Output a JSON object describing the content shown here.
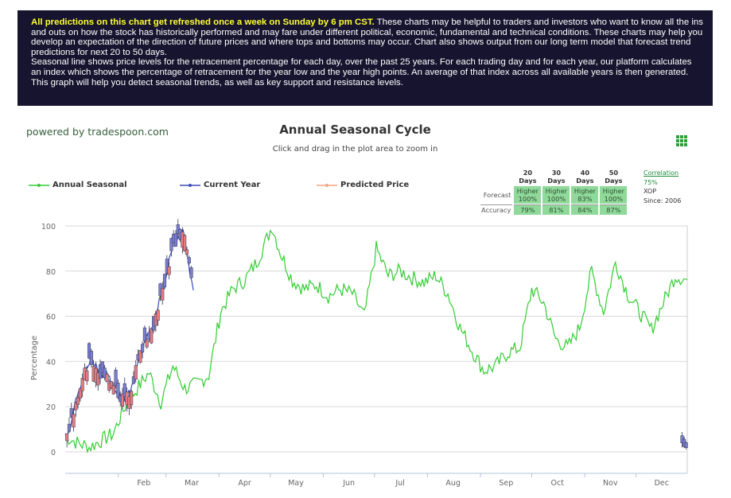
{
  "banner": {
    "headline": "All predictions on this chart get refreshed once a week on Sunday by 6 pm CST.",
    "paragraph1_rest": " These charts may be helpful to traders and investors who want to know all the ins and outs on how the stock has historically performed and may fare under different political, economic, fundamental and technical conditions. These charts may help you develop an expectation of the direction of future prices and where tops and bottoms may occur. Chart also shows output from our long term model that forecast trend predictions for next 20 to 50 days.",
    "paragraph2": "Seasonal line shows price levels for the retracement percentage for each day, over the past 25 years. For each trading day and for each year, our platform calculates an index which shows the percentage of retracement for the year low and the year high points. An average of that index across all available years is then generated. This graph will help you detect seasonal trends, as well as key support and resistance levels."
  },
  "powered_by": "powered by tradespoon.com",
  "stats": {
    "headers": [
      "20 Days",
      "30 Days",
      "40 Days",
      "50 Days"
    ],
    "forecast_label": "Forecast",
    "forecast_direction": [
      "Higher",
      "Higher",
      "Higher",
      "Higher"
    ],
    "forecast_pct": [
      "100%",
      "100%",
      "83%",
      "100%"
    ],
    "accuracy_label": "Accuracy",
    "accuracy": [
      "79%",
      "81%",
      "84%",
      "87%"
    ]
  },
  "correlation": {
    "label": "Correlation",
    "value": "75%",
    "ticker": "XOP",
    "since": "Since: 2006"
  },
  "colors": {
    "banner_bg": "#16142e",
    "banner_highlight": "#ffff33",
    "seasonal": "#33cc33",
    "current": "#3d4eb8",
    "predicted": "#f4a582",
    "candle_up": "#7a7fd0",
    "candle_down": "#e87c7c",
    "grid": "#d9d9d9"
  },
  "chart_data": {
    "type": "line",
    "title": "Annual Seasonal Cycle",
    "subtitle": "Click and drag in the plot area to zoom in",
    "ylabel": "Percentage",
    "ylim": [
      0,
      100
    ],
    "yticks": [
      0,
      20,
      40,
      60,
      80,
      100
    ],
    "x_ticks": [
      "Feb",
      "Mar",
      "Apr",
      "May",
      "Jun",
      "Jul",
      "Aug",
      "Sep",
      "Oct",
      "Nov",
      "Dec"
    ],
    "x_tick_days": [
      32,
      60,
      91,
      121,
      152,
      182,
      213,
      244,
      274,
      305,
      335
    ],
    "xlim": [
      1,
      365
    ],
    "grid": true,
    "legend_position": "top-left",
    "series": [
      {
        "name": "Annual Seasonal",
        "color": "#33cc33",
        "x": [
          1,
          8,
          15,
          22,
          29,
          36,
          43,
          50,
          57,
          64,
          71,
          78,
          85,
          92,
          99,
          106,
          113,
          120,
          122,
          127,
          134,
          141,
          148,
          155,
          162,
          169,
          176,
          183,
          190,
          197,
          204,
          211,
          218,
          225,
          232,
          239,
          246,
          253,
          260,
          267,
          274,
          281,
          288,
          295,
          302,
          309,
          316,
          323,
          330,
          337,
          344,
          351,
          358,
          365
        ],
        "y": [
          7,
          4,
          2,
          5,
          8,
          20,
          28,
          35,
          22,
          38,
          28,
          30,
          34,
          62,
          72,
          76,
          84,
          96,
          100,
          88,
          76,
          72,
          74,
          69,
          72,
          70,
          60,
          90,
          78,
          80,
          77,
          75,
          78,
          70,
          55,
          45,
          36,
          38,
          44,
          46,
          72,
          66,
          50,
          46,
          55,
          80,
          62,
          84,
          70,
          62,
          54,
          66,
          78,
          76
        ]
      },
      {
        "name": "Current Year",
        "color": "#3d4eb8",
        "x": [
          1,
          4,
          7,
          10,
          13,
          16,
          19,
          22,
          25,
          28,
          31,
          34,
          37,
          40,
          43,
          46,
          49,
          52,
          55,
          58,
          61,
          64,
          67,
          70,
          73,
          76
        ],
        "y": [
          6,
          12,
          24,
          30,
          36,
          40,
          38,
          33,
          36,
          30,
          27,
          24,
          24,
          30,
          38,
          46,
          52,
          54,
          64,
          70,
          82,
          90,
          94,
          98,
          84,
          72
        ]
      },
      {
        "name": "Predicted Price",
        "color": "#f4a582",
        "x": [],
        "y": []
      }
    ]
  }
}
